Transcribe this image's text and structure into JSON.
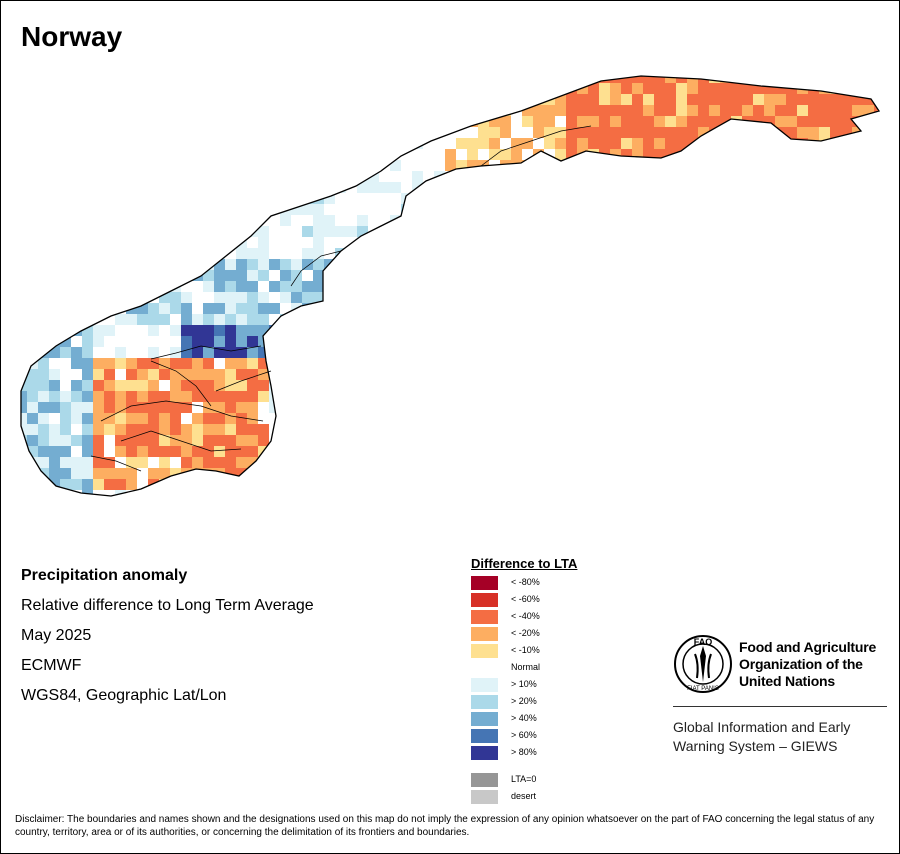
{
  "map": {
    "title": "Norway",
    "colors": {
      "lt80": "#a50026",
      "lt60": "#d73027",
      "lt40": "#f46d43",
      "lt20": "#fdae61",
      "lt10": "#fee090",
      "normal": "#ffffff",
      "gt10": "#e0f3f8",
      "gt20": "#abd9e9",
      "gt40": "#74add1",
      "gt60": "#4575b4",
      "gt80": "#313695",
      "lta0": "#969696",
      "desert": "#c8c8c8",
      "border": "#000000"
    }
  },
  "info": {
    "title": "Precipitation anomaly",
    "line1": "Relative difference to Long Term Average",
    "line2": "May 2025",
    "line3": "ECMWF",
    "line4": "WGS84, Geographic Lat/Lon"
  },
  "legend": {
    "title": "Difference to LTA",
    "items": [
      {
        "label": "< -80%",
        "color": "#a50026"
      },
      {
        "label": "< -60%",
        "color": "#d73027"
      },
      {
        "label": "< -40%",
        "color": "#f46d43"
      },
      {
        "label": "< -20%",
        "color": "#fdae61"
      },
      {
        "label": "< -10%",
        "color": "#fee090"
      },
      {
        "label": "Normal",
        "color": "#ffffff"
      },
      {
        "label": "> 10%",
        "color": "#e0f3f8"
      },
      {
        "label": "> 20%",
        "color": "#abd9e9"
      },
      {
        "label": "> 40%",
        "color": "#74add1"
      },
      {
        "label": "> 60%",
        "color": "#4575b4"
      },
      {
        "label": "> 80%",
        "color": "#313695"
      }
    ],
    "extra": [
      {
        "label": "LTA=0",
        "color": "#969696"
      },
      {
        "label": "desert",
        "color": "#c8c8c8"
      }
    ]
  },
  "fao": {
    "name_line1": "Food and Agriculture",
    "name_line2": "Organization of the",
    "name_line3": "United Nations",
    "giews_line1": "Global Information and Early",
    "giews_line2": "Warning System – GIEWS",
    "logo_letters": "FAO",
    "logo_motto": "FIAT PANIS"
  },
  "disclaimer": "Disclaimer: The boundaries and names shown and the designations used on this map do not imply the expression of any opinion whatsoever on the part of FAO concerning the legal status of any country, territory, area or of its authorities, or concerning the delimitation of its frontiers and boundaries."
}
